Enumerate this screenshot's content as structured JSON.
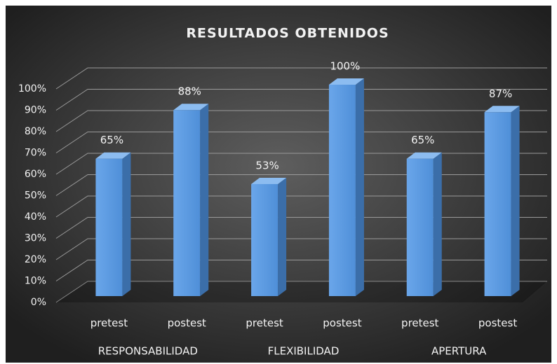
{
  "chart_data": {
    "type": "bar3d",
    "title": "RESULTADOS  OBTENIDOS",
    "categories": [
      "pretest",
      "postest",
      "pretest",
      "postest",
      "pretest",
      "postest"
    ],
    "groups": [
      "RESPONSABILIDAD",
      "FLEXIBILIDAD",
      "APERTURA"
    ],
    "values": [
      65,
      88,
      53,
      100,
      65,
      87
    ],
    "value_labels": [
      "65%",
      "88%",
      "53%",
      "100%",
      "65%",
      "87%"
    ],
    "color": "#5b9be0",
    "ylim": [
      0,
      100
    ],
    "yticks": [
      {
        "value": 0,
        "label": "0%"
      },
      {
        "value": 10,
        "label": "10%"
      },
      {
        "value": 20,
        "label": "20%"
      },
      {
        "value": 30,
        "label": "30%"
      },
      {
        "value": 40,
        "label": "40%"
      },
      {
        "value": 50,
        "label": "50%"
      },
      {
        "value": 60,
        "label": "60%"
      },
      {
        "value": 70,
        "label": "70%"
      },
      {
        "value": 80,
        "label": "80%"
      },
      {
        "value": 90,
        "label": "90%"
      },
      {
        "value": 100,
        "label": "100%"
      }
    ],
    "grid": true
  }
}
